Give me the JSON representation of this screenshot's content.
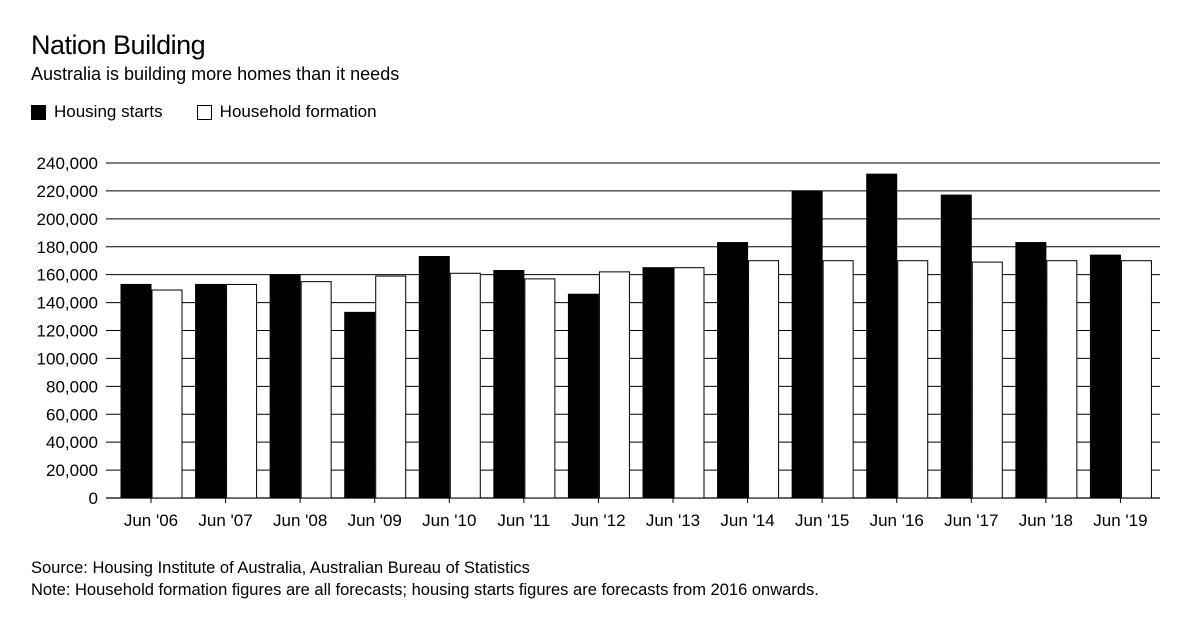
{
  "chart_data": {
    "type": "bar",
    "title": "Nation Building",
    "subtitle": "Australia is building more homes than it needs",
    "categories": [
      "Jun '06",
      "Jun '07",
      "Jun '08",
      "Jun '09",
      "Jun '10",
      "Jun '11",
      "Jun '12",
      "Jun '13",
      "Jun '14",
      "Jun '15",
      "Jun '16",
      "Jun '17",
      "Jun '18",
      "Jun '19"
    ],
    "series": [
      {
        "name": "Housing starts",
        "color": "#000000",
        "values": [
          153000,
          153000,
          160000,
          133000,
          173000,
          163000,
          146000,
          165000,
          183000,
          220000,
          232000,
          217000,
          183000,
          174000
        ]
      },
      {
        "name": "Household formation",
        "color": "#ffffff",
        "values": [
          149000,
          153000,
          155000,
          159000,
          161000,
          157000,
          162000,
          165000,
          170000,
          170000,
          170000,
          169000,
          170000,
          170000
        ]
      }
    ],
    "xlabel": "",
    "ylabel": "",
    "ylim": [
      0,
      240000
    ],
    "yticks": [
      "0",
      "20,000",
      "40,000",
      "60,000",
      "80,000",
      "100,000",
      "120,000",
      "140,000",
      "160,000",
      "180,000",
      "200,000",
      "220,000",
      "240,000"
    ],
    "grid": true,
    "legend_position": "top-left"
  },
  "footer": {
    "source": "Source: Housing Institute of Australia, Australian Bureau of Statistics",
    "note": "Note: Household formation figures are all forecasts; housing starts figures are forecasts from 2016 onwards."
  }
}
